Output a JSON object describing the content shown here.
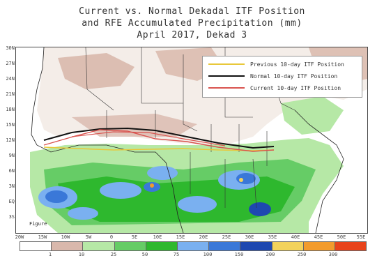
{
  "title": {
    "line1": "Current vs. Normal Dekadal ITF Position",
    "line2": "and RFE Accumulated Precipitation (mm)",
    "line3": "April 2017, Dekad 3"
  },
  "legend": [
    {
      "label": "Previous 10-day ITF Position",
      "color": "#e8c83a"
    },
    {
      "label": "Normal 10-day ITF Position",
      "color": "#111111"
    },
    {
      "label": "Current 10-day ITF Position",
      "color": "#d9534f"
    }
  ],
  "y_ticks": [
    "30N",
    "27N",
    "24N",
    "21N",
    "18N",
    "15N",
    "12N",
    "9N",
    "6N",
    "3N",
    "EQ",
    "3S"
  ],
  "x_ticks": [
    "20W",
    "15W",
    "10W",
    "5W",
    "0",
    "5E",
    "10E",
    "15E",
    "20E",
    "25E",
    "30E",
    "35E",
    "40E",
    "45E",
    "50E",
    "55E"
  ],
  "colorbar": {
    "labels": [
      "1",
      "10",
      "25",
      "50",
      "75",
      "100",
      "150",
      "200",
      "250",
      "300"
    ],
    "colors": [
      "#ffffff",
      "#d9b8ac",
      "#b6e8a6",
      "#66cc66",
      "#2eb82e",
      "#7ab0f0",
      "#3a78d8",
      "#1e48b0",
      "#f2d25c",
      "#f29b2c",
      "#e8431b"
    ]
  },
  "figure_label": "Figure"
}
